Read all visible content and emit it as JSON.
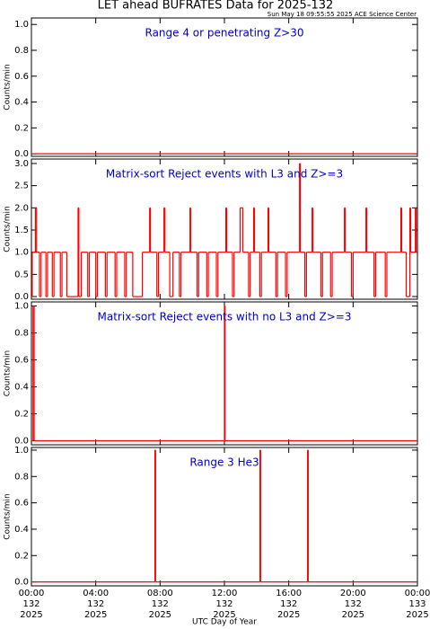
{
  "header": {
    "title": "LET ahead BUFRATES Data for 2025-132",
    "timestamp": "Sun May 18 09:55:55 2025 ACE Science Center"
  },
  "chart_data": [
    {
      "type": "line",
      "annotation": "Range 4 or  penetrating Z>30",
      "ylabel": "Counts/min",
      "color": "#ff0000",
      "drawstyle": "steps-post",
      "xlim": [
        0,
        24
      ],
      "xticks": [
        0,
        4,
        8,
        12,
        16,
        20,
        24
      ],
      "ylim": [
        -0.02,
        1.05
      ],
      "yticks": [
        {
          "value": 0,
          "label": "0.0"
        },
        {
          "value": 0.2,
          "label": "0.2"
        },
        {
          "value": 0.4,
          "label": "0.4"
        },
        {
          "value": 0.6,
          "label": "0.6"
        },
        {
          "value": 0.8,
          "label": "0.8"
        },
        {
          "value": 1,
          "label": "1.0"
        }
      ],
      "x": [
        0,
        24
      ],
      "values": [
        0,
        0
      ]
    },
    {
      "type": "line",
      "annotation": "Matrix-sort Reject events with L3 and Z>=3",
      "ylabel": "Counts/min",
      "color": "#ff0000",
      "drawstyle": "steps-post",
      "xlim": [
        0,
        24
      ],
      "xticks": [
        0,
        4,
        8,
        12,
        16,
        20,
        24
      ],
      "ylim": [
        -0.06,
        3.1
      ],
      "yticks": [
        {
          "value": 0,
          "label": "0.0"
        },
        {
          "value": 0.5,
          "label": "0.5"
        },
        {
          "value": 1,
          "label": "1.0"
        },
        {
          "value": 1.5,
          "label": "1.5"
        },
        {
          "value": 2,
          "label": "2.0"
        },
        {
          "value": 2.5,
          "label": "2.5"
        },
        {
          "value": 3,
          "label": "3.0"
        }
      ],
      "x": [
        0,
        0.05,
        0.25,
        0.32,
        0.5,
        0.6,
        0.9,
        1.0,
        1.3,
        1.4,
        1.8,
        1.9,
        2.2,
        2.9,
        2.95,
        3.1,
        3.5,
        3.6,
        4.0,
        4.1,
        4.6,
        4.7,
        5.2,
        5.3,
        5.8,
        5.9,
        6.3,
        6.9,
        7.35,
        7.4,
        7.8,
        7.9,
        8.24,
        8.3,
        8.6,
        8.8,
        9.2,
        9.3,
        9.86,
        9.9,
        10.3,
        10.4,
        10.9,
        11.0,
        11.5,
        11.6,
        12.09,
        12.14,
        12.5,
        12.6,
        12.98,
        13.14,
        13.5,
        13.6,
        13.82,
        13.87,
        14.2,
        14.3,
        14.71,
        14.76,
        15.2,
        15.3,
        15.8,
        15.9,
        16.67,
        16.72,
        17.0,
        17.1,
        17.45,
        17.5,
        18.0,
        18.1,
        18.6,
        18.7,
        19.46,
        19.51,
        19.9,
        20.0,
        20.8,
        20.85,
        21.3,
        21.4,
        22.0,
        22.1,
        22.97,
        23.02,
        23.3,
        23.53,
        23.58,
        23.87,
        23.92,
        24
      ],
      "values": [
        0,
        1,
        2,
        1,
        0,
        1,
        0,
        1,
        0,
        1,
        0,
        1,
        0,
        2,
        0,
        1,
        0,
        1,
        0,
        1,
        0,
        1,
        0,
        1,
        0,
        1,
        0,
        1,
        2,
        1,
        0,
        1,
        2,
        1,
        0,
        1,
        0,
        1,
        2,
        1,
        0,
        1,
        0,
        1,
        0,
        1,
        2,
        1,
        0,
        1,
        2,
        1,
        0,
        1,
        2,
        1,
        0,
        1,
        2,
        1,
        0,
        1,
        0,
        1,
        3,
        1,
        0,
        1,
        2,
        1,
        0,
        1,
        0,
        1,
        2,
        1,
        0,
        1,
        2,
        1,
        0,
        1,
        0,
        1,
        2,
        1,
        0,
        2,
        1,
        2,
        1,
        1
      ]
    },
    {
      "type": "line",
      "annotation": "Matrix-sort Reject events with no L3 and Z>=3",
      "ylabel": "Counts/min",
      "color": "#ff0000",
      "drawstyle": "steps-post",
      "xlim": [
        0,
        24
      ],
      "xticks": [
        0,
        4,
        8,
        12,
        16,
        20,
        24
      ],
      "ylim": [
        -0.03,
        1.03
      ],
      "yticks": [
        {
          "value": 0,
          "label": "0.0"
        },
        {
          "value": 0.2,
          "label": "0.2"
        },
        {
          "value": 0.4,
          "label": "0.4"
        },
        {
          "value": 0.6,
          "label": "0.6"
        },
        {
          "value": 0.8,
          "label": "0.8"
        },
        {
          "value": 1,
          "label": "1.0"
        }
      ],
      "x": [
        0,
        0.1,
        0.17,
        12.0,
        12.04,
        24
      ],
      "values": [
        0,
        1,
        0,
        1,
        0,
        0
      ]
    },
    {
      "type": "line",
      "annotation": "Range 3 He3",
      "ylabel": "Counts/min",
      "color": "#ff0000",
      "drawstyle": "steps-post",
      "xlabel": "UTC Day of Year",
      "xlim": [
        0,
        24
      ],
      "xticks": [
        {
          "value": 0,
          "label": "00:00",
          "day": "132",
          "year": "2025"
        },
        {
          "value": 4,
          "label": "04:00",
          "day": "132",
          "year": "2025"
        },
        {
          "value": 8,
          "label": "08:00",
          "day": "132",
          "year": "2025"
        },
        {
          "value": 12,
          "label": "12:00",
          "day": "132",
          "year": "2025"
        },
        {
          "value": 16,
          "label": "16:00",
          "day": "132",
          "year": "2025"
        },
        {
          "value": 20,
          "label": "20:00",
          "day": "132",
          "year": "2025"
        },
        {
          "value": 24,
          "label": "00:00",
          "day": "133",
          "year": "2025"
        }
      ],
      "ylim": [
        -0.03,
        1.02
      ],
      "yticks": [
        {
          "value": 0,
          "label": "0.0"
        },
        {
          "value": 0.2,
          "label": "0.2"
        },
        {
          "value": 0.4,
          "label": "0.4"
        },
        {
          "value": 0.6,
          "label": "0.6"
        },
        {
          "value": 0.8,
          "label": "0.8"
        },
        {
          "value": 1,
          "label": "1.0"
        }
      ],
      "x": [
        0,
        7.68,
        7.72,
        14.21,
        14.25,
        17.17,
        17.21,
        24
      ],
      "values": [
        0,
        1,
        0,
        1,
        0,
        1,
        0,
        0
      ]
    }
  ]
}
